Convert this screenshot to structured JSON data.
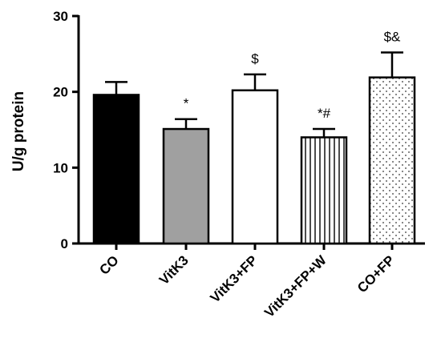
{
  "chart_data": {
    "type": "bar",
    "title": "",
    "xlabel": "",
    "ylabel": "U/g protein",
    "ylim": [
      0,
      30
    ],
    "yticks": [
      0,
      10,
      20,
      30
    ],
    "categories": [
      "CO",
      "VitK3",
      "VitK3+FP",
      "VitK3+FP+W",
      "CO+FP"
    ],
    "values": [
      19.6,
      15.1,
      20.2,
      14.0,
      21.9
    ],
    "errors": [
      1.7,
      1.3,
      2.1,
      1.1,
      3.3
    ],
    "annotations": [
      "",
      "*",
      "$",
      "*#",
      "$&"
    ],
    "fills": [
      "solid-black",
      "solid-gray",
      "white",
      "vertical-stripes",
      "dots"
    ],
    "colors": {
      "black": "#000000",
      "gray": "#a0a0a0",
      "white": "#ffffff"
    },
    "grid": false,
    "legend": "none"
  }
}
